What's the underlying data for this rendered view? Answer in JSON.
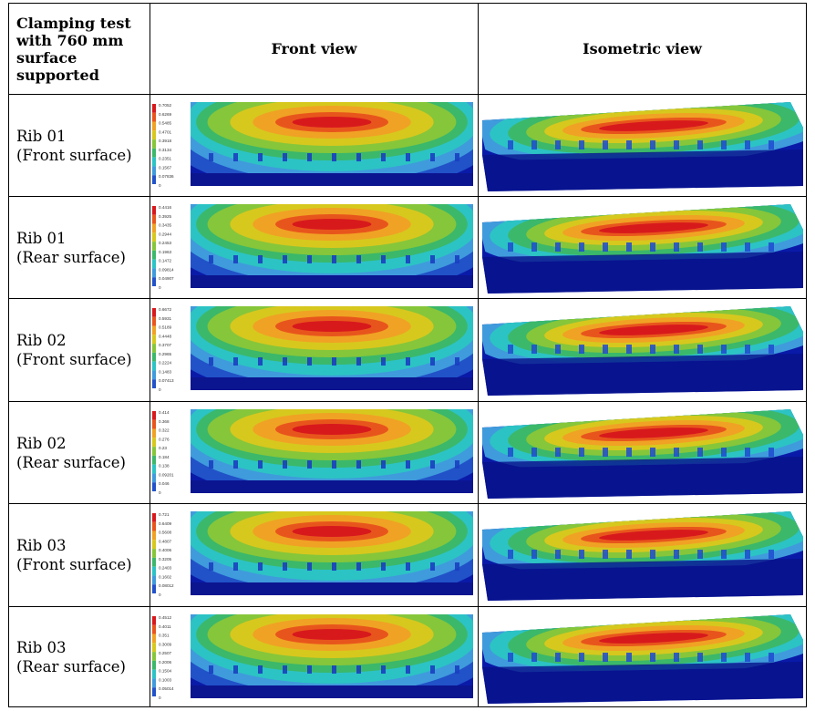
{
  "table": {
    "header": {
      "col1": "Clamping test with 760 mm surface supported",
      "col2": "Front view",
      "col3": "Isometric view"
    },
    "rows": [
      {
        "rib": "Rib 01",
        "surface": "(Front surface)",
        "legend": [
          "0.7052",
          "0.6269",
          "0.5485",
          "0.4701",
          "0.3918",
          "0.3134",
          "0.2351",
          "0.1567",
          "0.07836",
          "0"
        ]
      },
      {
        "rib": "Rib 01",
        "surface": "(Rear surface)",
        "legend": [
          "0.4416",
          "0.3925",
          "0.3435",
          "0.2944",
          "0.2453",
          "0.1963",
          "0.1472",
          "0.09814",
          "0.04907",
          "0"
        ]
      },
      {
        "rib": "Rib 02",
        "surface": "(Front surface)",
        "legend": [
          "0.6672",
          "0.5931",
          "0.5189",
          "0.4448",
          "0.3707",
          "0.2965",
          "0.2224",
          "0.1483",
          "0.07413",
          "0"
        ]
      },
      {
        "rib": "Rib 02",
        "surface": "(Rear surface)",
        "legend": [
          "0.414",
          "0.368",
          "0.322",
          "0.276",
          "0.23",
          "0.184",
          "0.138",
          "0.09201",
          "0.046",
          "0"
        ]
      },
      {
        "rib": "Rib 03",
        "surface": "(Front surface)",
        "legend": [
          "0.721",
          "0.6409",
          "0.5608",
          "0.4807",
          "0.4006",
          "0.3205",
          "0.2403",
          "0.1602",
          "0.08012",
          "0"
        ]
      },
      {
        "rib": "Rib 03",
        "surface": "(Rear surface)",
        "legend": [
          "0.4512",
          "0.4011",
          "0.351",
          "0.3009",
          "0.2507",
          "0.2006",
          "0.1504",
          "0.1003",
          "0.05014",
          "0"
        ]
      }
    ]
  },
  "colors": {
    "scale": [
      "#d7191c",
      "#e8551c",
      "#f0a224",
      "#d7c81e",
      "#86c63a",
      "#3bb86a",
      "#2cc3c4",
      "#3f9bdc",
      "#2152c8",
      "#0a1aa8"
    ]
  }
}
